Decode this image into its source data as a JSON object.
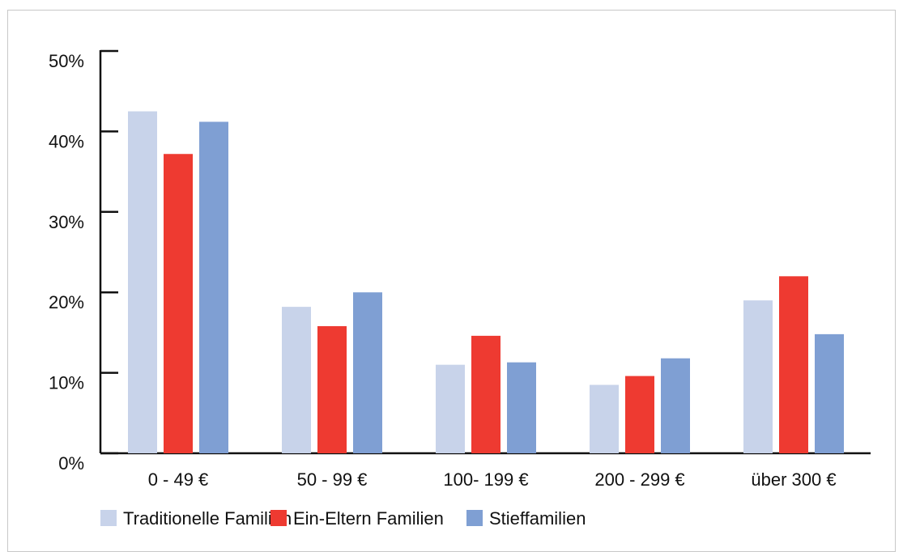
{
  "chart_data": {
    "type": "bar",
    "title": "",
    "xlabel": "",
    "ylabel": "",
    "categories": [
      "0 - 49 €",
      "50 - 99 €",
      "100- 199 €",
      "200 - 299 €",
      "über 300 €"
    ],
    "series": [
      {
        "name": "Traditionelle Familien",
        "color": "#c8d3ea",
        "values": [
          42.5,
          18.2,
          11.0,
          8.5,
          19.0
        ]
      },
      {
        "name": "Ein-Eltern Familien",
        "color": "#ee3a31",
        "values": [
          37.2,
          15.8,
          14.6,
          9.6,
          22.0
        ]
      },
      {
        "name": "Stieffamilien",
        "color": "#7f9fd3",
        "values": [
          41.2,
          20.0,
          11.3,
          11.8,
          14.8
        ]
      }
    ],
    "ylim": [
      0,
      50
    ],
    "yticks": [
      0,
      10,
      20,
      30,
      40,
      50
    ],
    "ytick_labels": [
      "0%",
      "10%",
      "20%",
      "30%",
      "40%",
      "50%"
    ],
    "grid": false,
    "legend_position": "bottom"
  }
}
